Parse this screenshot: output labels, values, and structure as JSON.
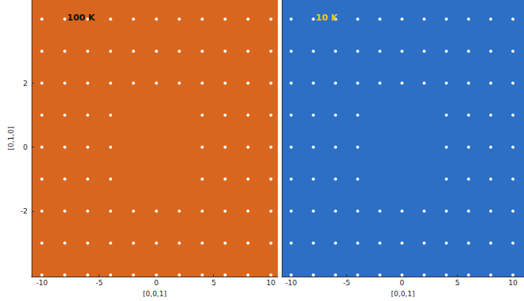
{
  "chart_data": [
    {
      "type": "scatter",
      "title": "100 K",
      "xlabel": "[0,0,1]",
      "ylabel": "[0,1,0]",
      "xlim": [
        -10.9,
        10.6
      ],
      "ylim": [
        -4.05,
        4.6
      ],
      "xticks": [
        -10,
        -5,
        0,
        5,
        10
      ],
      "yticks": [
        -2,
        0,
        2
      ],
      "color": "#ffffff",
      "marker": "circle",
      "points": [
        [
          -10,
          4
        ],
        [
          -8,
          4
        ],
        [
          -6,
          4
        ],
        [
          -4,
          4
        ],
        [
          -2,
          4
        ],
        [
          0,
          4
        ],
        [
          2,
          4
        ],
        [
          4,
          4
        ],
        [
          6,
          4
        ],
        [
          8,
          4
        ],
        [
          10,
          4
        ],
        [
          -10,
          3
        ],
        [
          -8,
          3
        ],
        [
          -6,
          3
        ],
        [
          -4,
          3
        ],
        [
          -2,
          3
        ],
        [
          0,
          3
        ],
        [
          2,
          3
        ],
        [
          4,
          3
        ],
        [
          6,
          3
        ],
        [
          8,
          3
        ],
        [
          10,
          3
        ],
        [
          -10,
          2
        ],
        [
          -8,
          2
        ],
        [
          -6,
          2
        ],
        [
          -4,
          2
        ],
        [
          -2,
          2
        ],
        [
          0,
          2
        ],
        [
          2,
          2
        ],
        [
          4,
          2
        ],
        [
          6,
          2
        ],
        [
          8,
          2
        ],
        [
          10,
          2
        ],
        [
          -10,
          1
        ],
        [
          -8,
          1
        ],
        [
          -6,
          1
        ],
        [
          -4,
          1
        ],
        [
          4,
          1
        ],
        [
          6,
          1
        ],
        [
          8,
          1
        ],
        [
          10,
          1
        ],
        [
          -10,
          0
        ],
        [
          -8,
          0
        ],
        [
          -6,
          0
        ],
        [
          -4,
          0
        ],
        [
          4,
          0
        ],
        [
          6,
          0
        ],
        [
          8,
          0
        ],
        [
          10,
          0
        ],
        [
          -10,
          -1
        ],
        [
          -8,
          -1
        ],
        [
          -6,
          -1
        ],
        [
          -4,
          -1
        ],
        [
          4,
          -1
        ],
        [
          6,
          -1
        ],
        [
          8,
          -1
        ],
        [
          10,
          -1
        ],
        [
          -10,
          -2
        ],
        [
          -8,
          -2
        ],
        [
          -6,
          -2
        ],
        [
          -4,
          -2
        ],
        [
          -2,
          -2
        ],
        [
          0,
          -2
        ],
        [
          2,
          -2
        ],
        [
          4,
          -2
        ],
        [
          6,
          -2
        ],
        [
          8,
          -2
        ],
        [
          10,
          -2
        ],
        [
          -10,
          -3
        ],
        [
          -8,
          -3
        ],
        [
          -6,
          -3
        ],
        [
          -4,
          -3
        ],
        [
          -2,
          -3
        ],
        [
          0,
          -3
        ],
        [
          2,
          -3
        ],
        [
          4,
          -3
        ],
        [
          6,
          -3
        ],
        [
          8,
          -3
        ],
        [
          10,
          -3
        ],
        [
          -10,
          -4
        ],
        [
          -8,
          -4
        ],
        [
          -6,
          -4
        ],
        [
          -4,
          -4
        ],
        [
          -2,
          -4
        ],
        [
          0,
          -4
        ],
        [
          2,
          -4
        ],
        [
          4,
          -4
        ],
        [
          6,
          -4
        ],
        [
          8,
          -4
        ],
        [
          10,
          -4
        ]
      ]
    },
    {
      "type": "scatter",
      "title": "10 K",
      "xlabel": "[0,0,1]",
      "xlim": [
        -10.85,
        11
      ],
      "ylim": [
        -4.05,
        4.6
      ],
      "xticks": [
        -10,
        -5,
        0,
        5,
        10
      ],
      "tick_labels": "x",
      "color": "#ffffff",
      "marker": "circle",
      "points": [
        [
          -10,
          4
        ],
        [
          -8,
          4
        ],
        [
          -6,
          4
        ],
        [
          -4,
          4
        ],
        [
          -2,
          4
        ],
        [
          0,
          4
        ],
        [
          2,
          4
        ],
        [
          4,
          4
        ],
        [
          6,
          4
        ],
        [
          8,
          4
        ],
        [
          10,
          4
        ],
        [
          -10,
          3
        ],
        [
          -8,
          3
        ],
        [
          -6,
          3
        ],
        [
          -4,
          3
        ],
        [
          -2,
          3
        ],
        [
          0,
          3
        ],
        [
          2,
          3
        ],
        [
          4,
          3
        ],
        [
          6,
          3
        ],
        [
          8,
          3
        ],
        [
          10,
          3
        ],
        [
          -10,
          2
        ],
        [
          -8,
          2
        ],
        [
          -6,
          2
        ],
        [
          -4,
          2
        ],
        [
          -2,
          2
        ],
        [
          0,
          2
        ],
        [
          2,
          2
        ],
        [
          4,
          2
        ],
        [
          6,
          2
        ],
        [
          8,
          2
        ],
        [
          10,
          2
        ],
        [
          -10,
          1
        ],
        [
          -8,
          1
        ],
        [
          -6,
          1
        ],
        [
          -4,
          1
        ],
        [
          4,
          1
        ],
        [
          6,
          1
        ],
        [
          8,
          1
        ],
        [
          10,
          1
        ],
        [
          -10,
          0
        ],
        [
          -8,
          0
        ],
        [
          -6,
          0
        ],
        [
          -4,
          0
        ],
        [
          4,
          0
        ],
        [
          6,
          0
        ],
        [
          8,
          0
        ],
        [
          10,
          0
        ],
        [
          -10,
          -1
        ],
        [
          -8,
          -1
        ],
        [
          -6,
          -1
        ],
        [
          -4,
          -1
        ],
        [
          4,
          -1
        ],
        [
          6,
          -1
        ],
        [
          8,
          -1
        ],
        [
          10,
          -1
        ],
        [
          -10,
          -2
        ],
        [
          -8,
          -2
        ],
        [
          -6,
          -2
        ],
        [
          -4,
          -2
        ],
        [
          -2,
          -2
        ],
        [
          0,
          -2
        ],
        [
          2,
          -2
        ],
        [
          4,
          -2
        ],
        [
          6,
          -2
        ],
        [
          8,
          -2
        ],
        [
          10,
          -2
        ],
        [
          -10,
          -3
        ],
        [
          -8,
          -3
        ],
        [
          -6,
          -3
        ],
        [
          -4,
          -3
        ],
        [
          -2,
          -3
        ],
        [
          0,
          -3
        ],
        [
          2,
          -3
        ],
        [
          4,
          -3
        ],
        [
          6,
          -3
        ],
        [
          8,
          -3
        ],
        [
          10,
          -3
        ],
        [
          -10,
          -4
        ],
        [
          -8,
          -4
        ],
        [
          -6,
          -4
        ],
        [
          -4,
          -4
        ],
        [
          -2,
          -4
        ],
        [
          0,
          -4
        ],
        [
          2,
          -4
        ],
        [
          4,
          -4
        ],
        [
          6,
          -4
        ],
        [
          8,
          -4
        ],
        [
          10,
          -4
        ]
      ]
    }
  ]
}
